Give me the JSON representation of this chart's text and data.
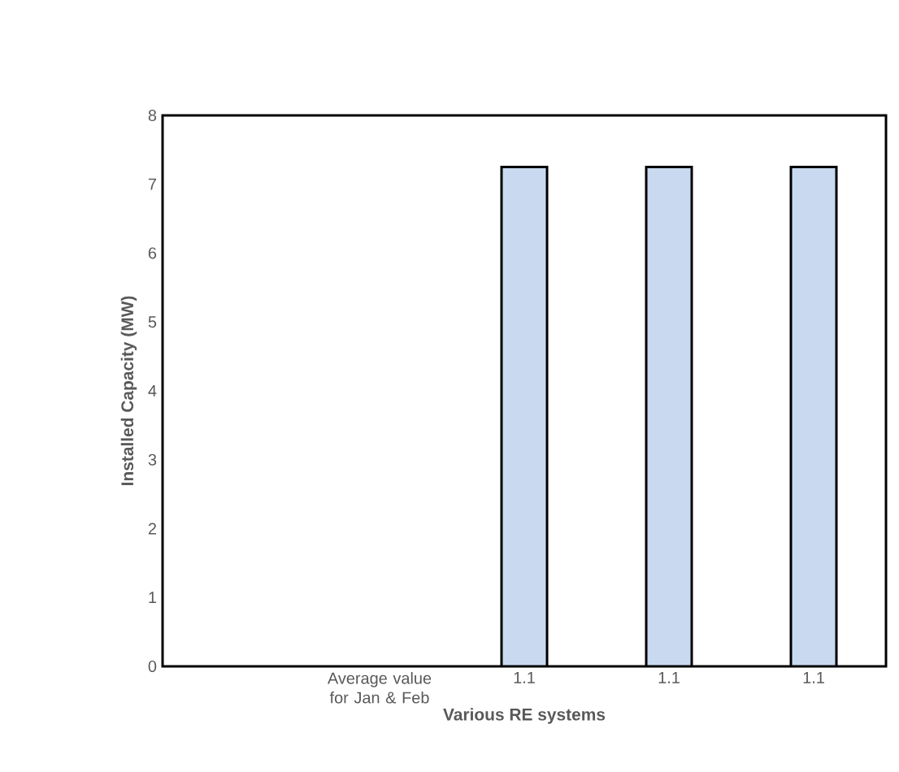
{
  "chart_data": {
    "type": "bar",
    "xlabel": "Various RE systems",
    "ylabel": "Installed Capacity (MW)",
    "categories": [
      null,
      "Average value for Jan & Feb",
      "1.1",
      "1.1",
      "1.1"
    ],
    "values": [
      null,
      null,
      7.25,
      7.25,
      7.25
    ],
    "color": "#c9daf0",
    "ylim": [
      0,
      8
    ],
    "yticks": [
      0,
      1,
      2,
      3,
      4,
      5,
      6,
      7,
      8
    ]
  }
}
